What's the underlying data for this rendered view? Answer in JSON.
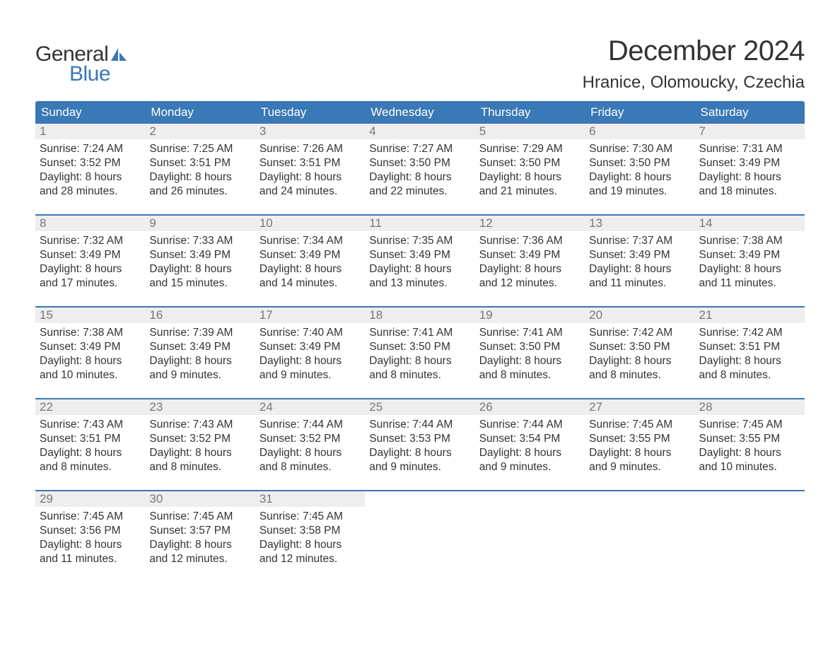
{
  "logo": {
    "word1": "General",
    "word2": "Blue"
  },
  "colors": {
    "header_bg": "#3a78b6",
    "daynum_bg": "#eeeeee",
    "daynum_text": "#777777",
    "body_text": "#333333",
    "logo_blue": "#3a78b6"
  },
  "title": {
    "month": "December 2024",
    "location": "Hranice, Olomoucky, Czechia"
  },
  "weekdays": [
    "Sunday",
    "Monday",
    "Tuesday",
    "Wednesday",
    "Thursday",
    "Friday",
    "Saturday"
  ],
  "weeks": [
    [
      {
        "n": "1",
        "sr": "Sunrise: 7:24 AM",
        "ss": "Sunset: 3:52 PM",
        "d1": "Daylight: 8 hours",
        "d2": "and 28 minutes."
      },
      {
        "n": "2",
        "sr": "Sunrise: 7:25 AM",
        "ss": "Sunset: 3:51 PM",
        "d1": "Daylight: 8 hours",
        "d2": "and 26 minutes."
      },
      {
        "n": "3",
        "sr": "Sunrise: 7:26 AM",
        "ss": "Sunset: 3:51 PM",
        "d1": "Daylight: 8 hours",
        "d2": "and 24 minutes."
      },
      {
        "n": "4",
        "sr": "Sunrise: 7:27 AM",
        "ss": "Sunset: 3:50 PM",
        "d1": "Daylight: 8 hours",
        "d2": "and 22 minutes."
      },
      {
        "n": "5",
        "sr": "Sunrise: 7:29 AM",
        "ss": "Sunset: 3:50 PM",
        "d1": "Daylight: 8 hours",
        "d2": "and 21 minutes."
      },
      {
        "n": "6",
        "sr": "Sunrise: 7:30 AM",
        "ss": "Sunset: 3:50 PM",
        "d1": "Daylight: 8 hours",
        "d2": "and 19 minutes."
      },
      {
        "n": "7",
        "sr": "Sunrise: 7:31 AM",
        "ss": "Sunset: 3:49 PM",
        "d1": "Daylight: 8 hours",
        "d2": "and 18 minutes."
      }
    ],
    [
      {
        "n": "8",
        "sr": "Sunrise: 7:32 AM",
        "ss": "Sunset: 3:49 PM",
        "d1": "Daylight: 8 hours",
        "d2": "and 17 minutes."
      },
      {
        "n": "9",
        "sr": "Sunrise: 7:33 AM",
        "ss": "Sunset: 3:49 PM",
        "d1": "Daylight: 8 hours",
        "d2": "and 15 minutes."
      },
      {
        "n": "10",
        "sr": "Sunrise: 7:34 AM",
        "ss": "Sunset: 3:49 PM",
        "d1": "Daylight: 8 hours",
        "d2": "and 14 minutes."
      },
      {
        "n": "11",
        "sr": "Sunrise: 7:35 AM",
        "ss": "Sunset: 3:49 PM",
        "d1": "Daylight: 8 hours",
        "d2": "and 13 minutes."
      },
      {
        "n": "12",
        "sr": "Sunrise: 7:36 AM",
        "ss": "Sunset: 3:49 PM",
        "d1": "Daylight: 8 hours",
        "d2": "and 12 minutes."
      },
      {
        "n": "13",
        "sr": "Sunrise: 7:37 AM",
        "ss": "Sunset: 3:49 PM",
        "d1": "Daylight: 8 hours",
        "d2": "and 11 minutes."
      },
      {
        "n": "14",
        "sr": "Sunrise: 7:38 AM",
        "ss": "Sunset: 3:49 PM",
        "d1": "Daylight: 8 hours",
        "d2": "and 11 minutes."
      }
    ],
    [
      {
        "n": "15",
        "sr": "Sunrise: 7:38 AM",
        "ss": "Sunset: 3:49 PM",
        "d1": "Daylight: 8 hours",
        "d2": "and 10 minutes."
      },
      {
        "n": "16",
        "sr": "Sunrise: 7:39 AM",
        "ss": "Sunset: 3:49 PM",
        "d1": "Daylight: 8 hours",
        "d2": "and 9 minutes."
      },
      {
        "n": "17",
        "sr": "Sunrise: 7:40 AM",
        "ss": "Sunset: 3:49 PM",
        "d1": "Daylight: 8 hours",
        "d2": "and 9 minutes."
      },
      {
        "n": "18",
        "sr": "Sunrise: 7:41 AM",
        "ss": "Sunset: 3:50 PM",
        "d1": "Daylight: 8 hours",
        "d2": "and 8 minutes."
      },
      {
        "n": "19",
        "sr": "Sunrise: 7:41 AM",
        "ss": "Sunset: 3:50 PM",
        "d1": "Daylight: 8 hours",
        "d2": "and 8 minutes."
      },
      {
        "n": "20",
        "sr": "Sunrise: 7:42 AM",
        "ss": "Sunset: 3:50 PM",
        "d1": "Daylight: 8 hours",
        "d2": "and 8 minutes."
      },
      {
        "n": "21",
        "sr": "Sunrise: 7:42 AM",
        "ss": "Sunset: 3:51 PM",
        "d1": "Daylight: 8 hours",
        "d2": "and 8 minutes."
      }
    ],
    [
      {
        "n": "22",
        "sr": "Sunrise: 7:43 AM",
        "ss": "Sunset: 3:51 PM",
        "d1": "Daylight: 8 hours",
        "d2": "and 8 minutes."
      },
      {
        "n": "23",
        "sr": "Sunrise: 7:43 AM",
        "ss": "Sunset: 3:52 PM",
        "d1": "Daylight: 8 hours",
        "d2": "and 8 minutes."
      },
      {
        "n": "24",
        "sr": "Sunrise: 7:44 AM",
        "ss": "Sunset: 3:52 PM",
        "d1": "Daylight: 8 hours",
        "d2": "and 8 minutes."
      },
      {
        "n": "25",
        "sr": "Sunrise: 7:44 AM",
        "ss": "Sunset: 3:53 PM",
        "d1": "Daylight: 8 hours",
        "d2": "and 9 minutes."
      },
      {
        "n": "26",
        "sr": "Sunrise: 7:44 AM",
        "ss": "Sunset: 3:54 PM",
        "d1": "Daylight: 8 hours",
        "d2": "and 9 minutes."
      },
      {
        "n": "27",
        "sr": "Sunrise: 7:45 AM",
        "ss": "Sunset: 3:55 PM",
        "d1": "Daylight: 8 hours",
        "d2": "and 9 minutes."
      },
      {
        "n": "28",
        "sr": "Sunrise: 7:45 AM",
        "ss": "Sunset: 3:55 PM",
        "d1": "Daylight: 8 hours",
        "d2": "and 10 minutes."
      }
    ],
    [
      {
        "n": "29",
        "sr": "Sunrise: 7:45 AM",
        "ss": "Sunset: 3:56 PM",
        "d1": "Daylight: 8 hours",
        "d2": "and 11 minutes."
      },
      {
        "n": "30",
        "sr": "Sunrise: 7:45 AM",
        "ss": "Sunset: 3:57 PM",
        "d1": "Daylight: 8 hours",
        "d2": "and 12 minutes."
      },
      {
        "n": "31",
        "sr": "Sunrise: 7:45 AM",
        "ss": "Sunset: 3:58 PM",
        "d1": "Daylight: 8 hours",
        "d2": "and 12 minutes."
      },
      {
        "empty": true
      },
      {
        "empty": true
      },
      {
        "empty": true
      },
      {
        "empty": true
      }
    ]
  ]
}
